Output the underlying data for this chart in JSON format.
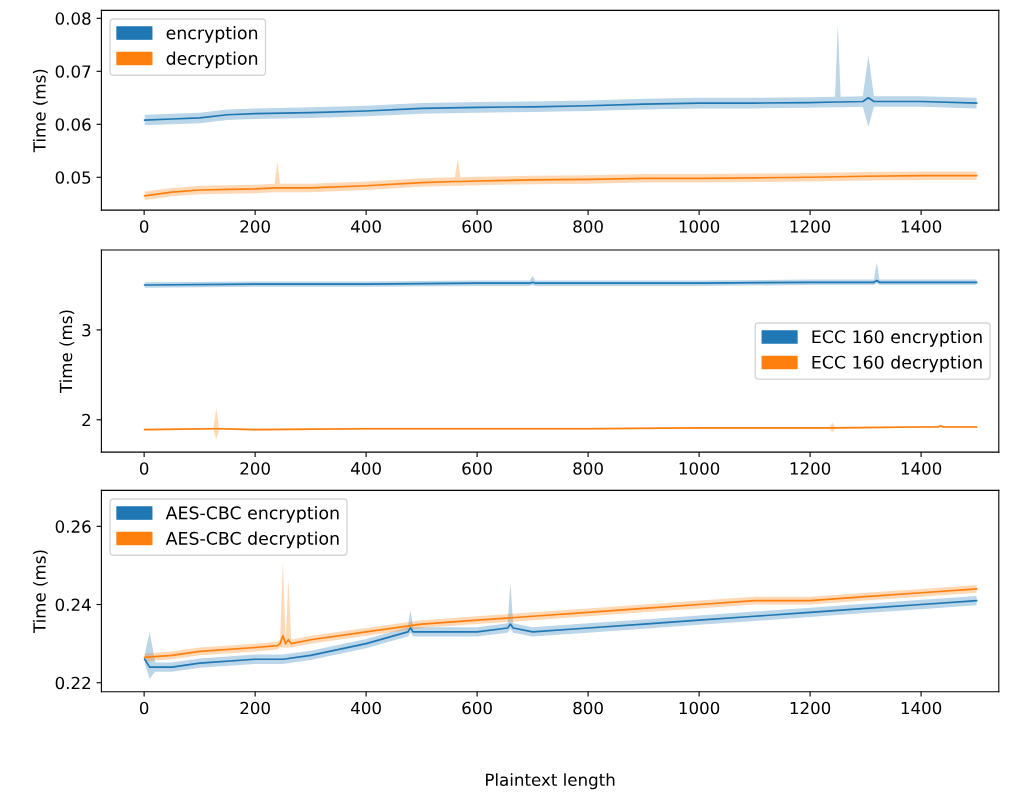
{
  "chart_data": [
    {
      "type": "line",
      "ylabel": "Time (ms)",
      "xlim": [
        -77,
        1540
      ],
      "ylim": [
        0.0438,
        0.0815
      ],
      "xticks": [
        0,
        200,
        400,
        600,
        800,
        1000,
        1200,
        1400
      ],
      "yticks": [
        0.05,
        0.06,
        0.07,
        0.08
      ],
      "legend": "top left",
      "grid": false,
      "series": [
        {
          "name": "encryption",
          "color": "#1f77b4",
          "x": [
            1,
            50,
            100,
            150,
            200,
            300,
            400,
            500,
            600,
            700,
            800,
            900,
            1000,
            1100,
            1200,
            1245,
            1250,
            1255,
            1295,
            1305,
            1315,
            1400,
            1500
          ],
          "values": [
            0.0608,
            0.061,
            0.0612,
            0.0618,
            0.062,
            0.0622,
            0.0625,
            0.063,
            0.0632,
            0.0633,
            0.0635,
            0.0638,
            0.064,
            0.064,
            0.0641,
            0.0642,
            0.0642,
            0.0642,
            0.0643,
            0.065,
            0.0643,
            0.0643,
            0.064
          ],
          "lower": [
            0.0598,
            0.06,
            0.0602,
            0.0608,
            0.061,
            0.0612,
            0.0615,
            0.062,
            0.0622,
            0.0623,
            0.0625,
            0.0628,
            0.063,
            0.063,
            0.0631,
            0.0632,
            0.0632,
            0.0632,
            0.0633,
            0.0595,
            0.0633,
            0.0633,
            0.063
          ],
          "upper": [
            0.0618,
            0.062,
            0.0622,
            0.0628,
            0.063,
            0.0632,
            0.0635,
            0.064,
            0.0642,
            0.0643,
            0.0645,
            0.0648,
            0.065,
            0.065,
            0.0651,
            0.0652,
            0.079,
            0.0652,
            0.0653,
            0.073,
            0.0653,
            0.0653,
            0.065
          ]
        },
        {
          "name": "decryption",
          "color": "#ff7f0e",
          "x": [
            1,
            50,
            100,
            200,
            235,
            240,
            245,
            300,
            400,
            500,
            560,
            565,
            570,
            600,
            700,
            800,
            900,
            1000,
            1100,
            1200,
            1300,
            1400,
            1500
          ],
          "values": [
            0.0465,
            0.0472,
            0.0476,
            0.0478,
            0.048,
            0.048,
            0.048,
            0.048,
            0.0484,
            0.049,
            0.0492,
            0.0492,
            0.0492,
            0.0493,
            0.0495,
            0.0496,
            0.0498,
            0.0498,
            0.0499,
            0.05,
            0.0502,
            0.0503,
            0.0503
          ],
          "lower": [
            0.0457,
            0.0464,
            0.0468,
            0.047,
            0.0472,
            0.0472,
            0.0472,
            0.0472,
            0.0476,
            0.0482,
            0.0484,
            0.0484,
            0.0484,
            0.0485,
            0.0487,
            0.0488,
            0.049,
            0.049,
            0.0491,
            0.0492,
            0.0494,
            0.0495,
            0.0495
          ],
          "upper": [
            0.0473,
            0.048,
            0.0484,
            0.0486,
            0.0488,
            0.053,
            0.0488,
            0.0488,
            0.0492,
            0.0498,
            0.05,
            0.0535,
            0.05,
            0.0501,
            0.0503,
            0.0504,
            0.0506,
            0.0506,
            0.0507,
            0.0508,
            0.051,
            0.0511,
            0.0511
          ]
        }
      ]
    },
    {
      "type": "line",
      "ylabel": "Time (ms)",
      "xlim": [
        -77,
        1540
      ],
      "ylim": [
        1.64,
        3.89
      ],
      "xticks": [
        0,
        200,
        400,
        600,
        800,
        1000,
        1200,
        1400
      ],
      "yticks": [
        2,
        3
      ],
      "legend": "right",
      "grid": false,
      "series": [
        {
          "name": "ECC 160 encryption",
          "color": "#1f77b4",
          "x": [
            1,
            200,
            400,
            600,
            695,
            700,
            705,
            800,
            1000,
            1200,
            1315,
            1320,
            1325,
            1400,
            1500
          ],
          "values": [
            3.5,
            3.51,
            3.51,
            3.52,
            3.52,
            3.53,
            3.52,
            3.52,
            3.52,
            3.53,
            3.53,
            3.55,
            3.53,
            3.53,
            3.53
          ],
          "lower": [
            3.47,
            3.48,
            3.48,
            3.49,
            3.49,
            3.5,
            3.49,
            3.49,
            3.49,
            3.5,
            3.5,
            3.52,
            3.5,
            3.5,
            3.5
          ],
          "upper": [
            3.53,
            3.54,
            3.54,
            3.55,
            3.55,
            3.6,
            3.55,
            3.55,
            3.55,
            3.56,
            3.56,
            3.75,
            3.56,
            3.56,
            3.56
          ]
        },
        {
          "name": "ECC 160 decryption",
          "color": "#ff7f0e",
          "x": [
            1,
            125,
            130,
            135,
            200,
            400,
            600,
            800,
            1000,
            1200,
            1235,
            1240,
            1245,
            1400,
            1430,
            1435,
            1440,
            1500
          ],
          "values": [
            1.89,
            1.9,
            1.9,
            1.9,
            1.89,
            1.9,
            1.9,
            1.9,
            1.91,
            1.91,
            1.91,
            1.91,
            1.91,
            1.92,
            1.92,
            1.93,
            1.92,
            1.92
          ],
          "lower": [
            1.88,
            1.89,
            1.78,
            1.89,
            1.88,
            1.89,
            1.89,
            1.89,
            1.9,
            1.9,
            1.9,
            1.86,
            1.9,
            1.91,
            1.91,
            1.92,
            1.91,
            1.91
          ],
          "upper": [
            1.9,
            1.91,
            2.13,
            1.91,
            1.9,
            1.91,
            1.91,
            1.91,
            1.92,
            1.92,
            1.92,
            1.97,
            1.92,
            1.93,
            1.93,
            1.95,
            1.93,
            1.93
          ]
        }
      ]
    },
    {
      "type": "line",
      "ylabel": "Time (ms)",
      "xlabel": "Plaintext length",
      "xlim": [
        -77,
        1540
      ],
      "ylim": [
        0.2177,
        0.2692
      ],
      "xticks": [
        0,
        200,
        400,
        600,
        800,
        1000,
        1200,
        1400
      ],
      "yticks": [
        0.22,
        0.24,
        0.26
      ],
      "legend": "top left",
      "grid": false,
      "series": [
        {
          "name": "AES-CBC encryption",
          "color": "#1f77b4",
          "x": [
            1,
            10,
            20,
            50,
            100,
            200,
            250,
            300,
            400,
            475,
            480,
            485,
            500,
            600,
            655,
            660,
            665,
            700,
            800,
            900,
            1000,
            1100,
            1200,
            1300,
            1400,
            1500
          ],
          "values": [
            0.226,
            0.224,
            0.224,
            0.224,
            0.225,
            0.226,
            0.226,
            0.227,
            0.23,
            0.233,
            0.234,
            0.233,
            0.233,
            0.233,
            0.234,
            0.235,
            0.234,
            0.233,
            0.234,
            0.235,
            0.236,
            0.237,
            0.238,
            0.239,
            0.24,
            0.241
          ],
          "lower": [
            0.2248,
            0.221,
            0.2228,
            0.2228,
            0.2238,
            0.2248,
            0.2248,
            0.2258,
            0.2288,
            0.2318,
            0.2328,
            0.2318,
            0.2318,
            0.2318,
            0.2328,
            0.2338,
            0.2328,
            0.2318,
            0.2328,
            0.2338,
            0.2348,
            0.2358,
            0.2368,
            0.2378,
            0.2388,
            0.2398
          ],
          "upper": [
            0.2272,
            0.233,
            0.2252,
            0.2252,
            0.2262,
            0.2272,
            0.2272,
            0.2282,
            0.2312,
            0.2342,
            0.2385,
            0.2342,
            0.2342,
            0.2342,
            0.2352,
            0.2455,
            0.2352,
            0.2342,
            0.2352,
            0.2362,
            0.2372,
            0.2382,
            0.2392,
            0.2402,
            0.2412,
            0.2422
          ]
        },
        {
          "name": "AES-CBC decryption",
          "color": "#ff7f0e",
          "x": [
            1,
            50,
            100,
            200,
            240,
            245,
            250,
            255,
            260,
            265,
            300,
            400,
            500,
            600,
            700,
            800,
            900,
            1000,
            1100,
            1200,
            1300,
            1400,
            1500
          ],
          "values": [
            0.2265,
            0.227,
            0.228,
            0.229,
            0.2295,
            0.23,
            0.232,
            0.23,
            0.231,
            0.23,
            0.231,
            0.233,
            0.235,
            0.236,
            0.237,
            0.238,
            0.239,
            0.24,
            0.241,
            0.241,
            0.242,
            0.243,
            0.244
          ],
          "lower": [
            0.2255,
            0.226,
            0.227,
            0.228,
            0.2285,
            0.229,
            0.229,
            0.229,
            0.229,
            0.229,
            0.23,
            0.232,
            0.234,
            0.235,
            0.236,
            0.237,
            0.238,
            0.239,
            0.24,
            0.24,
            0.241,
            0.242,
            0.243
          ],
          "upper": [
            0.2275,
            0.228,
            0.229,
            0.23,
            0.2305,
            0.231,
            0.251,
            0.231,
            0.2465,
            0.231,
            0.232,
            0.234,
            0.236,
            0.237,
            0.238,
            0.239,
            0.24,
            0.241,
            0.242,
            0.242,
            0.243,
            0.244,
            0.245
          ]
        }
      ]
    }
  ]
}
